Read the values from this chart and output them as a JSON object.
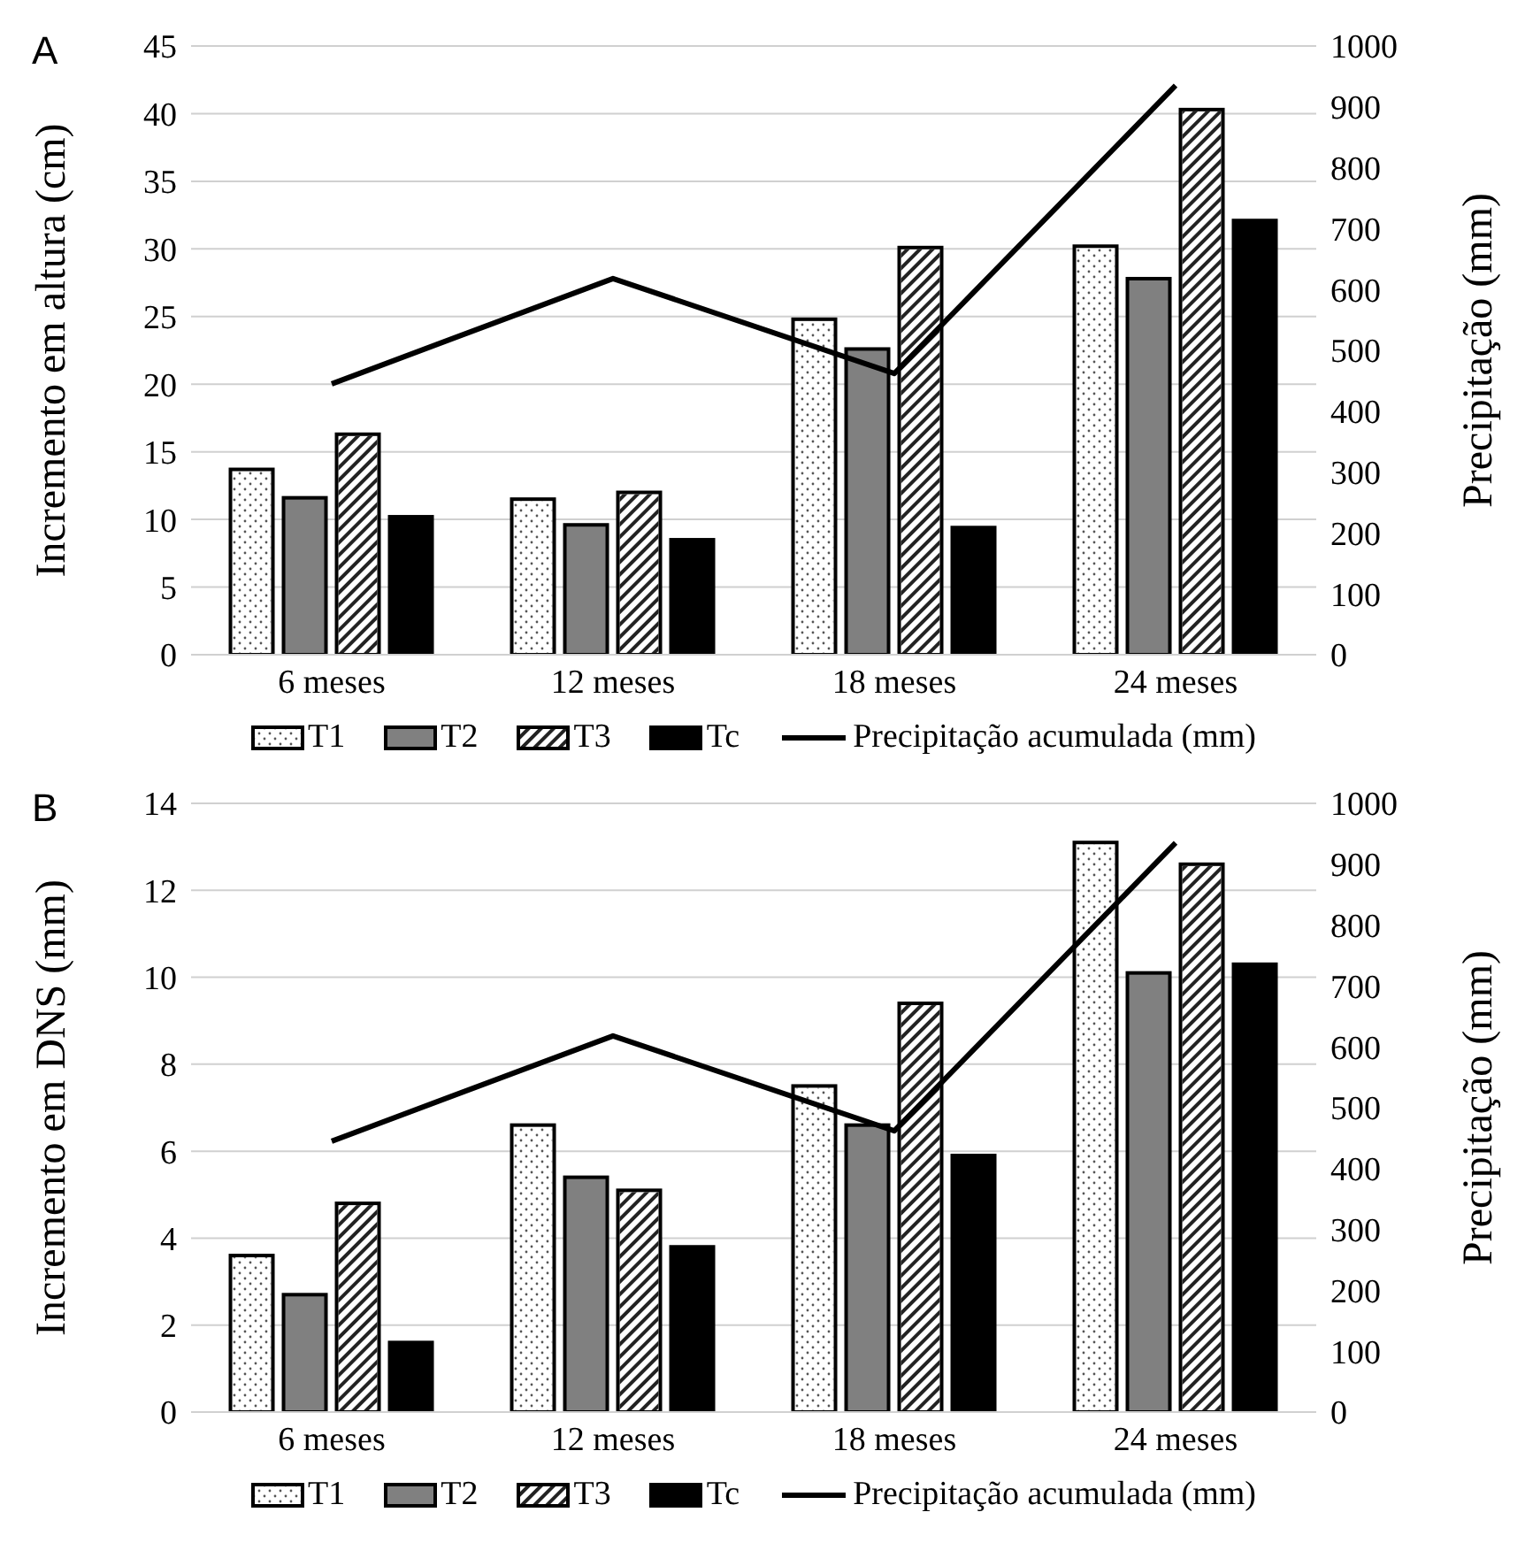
{
  "chart_data": [
    {
      "type": "bar",
      "title": "A",
      "categories": [
        "6 meses",
        "12 meses",
        "18 meses",
        "24 meses"
      ],
      "ylabel": "Incremento em altura (cm)",
      "y2label": "Precipitação (mm)",
      "ylim": [
        0,
        45
      ],
      "yticks": [
        0,
        5,
        10,
        15,
        20,
        25,
        30,
        35,
        40,
        45
      ],
      "y2lim": [
        0,
        1000
      ],
      "y2ticks": [
        0,
        100,
        200,
        300,
        400,
        500,
        600,
        700,
        800,
        900,
        1000
      ],
      "grid": "y",
      "legend": "bottom",
      "marker": "none",
      "series": [
        {
          "name": "T1",
          "color": "#ffffff",
          "values": [
            13.7,
            11.5,
            24.8,
            30.2
          ]
        },
        {
          "name": "T2",
          "color": "#808080",
          "values": [
            11.6,
            9.6,
            22.6,
            27.8
          ]
        },
        {
          "name": "T3",
          "color": "#ffffff",
          "values": [
            16.3,
            12.0,
            30.1,
            40.3
          ]
        },
        {
          "name": "Tc",
          "color": "#000000",
          "values": [
            10.2,
            8.5,
            9.4,
            32.1
          ]
        },
        {
          "name": "Precipitação acumulada (mm)",
          "type": "line",
          "axis": "y2",
          "color": "#000000",
          "values": [
            445,
            618,
            462,
            935
          ]
        }
      ]
    },
    {
      "type": "bar",
      "title": "B",
      "categories": [
        "6 meses",
        "12 meses",
        "18 meses",
        "24 meses"
      ],
      "ylabel": "Incremento em DNS (mm)",
      "y2label": "Precipitação (mm)",
      "ylim": [
        0,
        14
      ],
      "yticks": [
        0,
        2,
        4,
        6,
        8,
        10,
        12,
        14
      ],
      "y2lim": [
        0,
        1000
      ],
      "y2ticks": [
        0,
        100,
        200,
        300,
        400,
        500,
        600,
        700,
        800,
        900,
        1000
      ],
      "grid": "y",
      "legend": "bottom",
      "marker": "none",
      "series": [
        {
          "name": "T1",
          "color": "#ffffff",
          "values": [
            3.6,
            6.6,
            7.5,
            13.1
          ]
        },
        {
          "name": "T2",
          "color": "#808080",
          "values": [
            2.7,
            5.4,
            6.6,
            10.1
          ]
        },
        {
          "name": "T3",
          "color": "#ffffff",
          "values": [
            4.8,
            5.1,
            9.4,
            12.6
          ]
        },
        {
          "name": "Tc",
          "color": "#000000",
          "values": [
            1.6,
            3.8,
            5.9,
            10.3
          ]
        },
        {
          "name": "Precipitação acumulada (mm)",
          "type": "line",
          "axis": "y2",
          "color": "#000000",
          "values": [
            445,
            618,
            462,
            935
          ]
        }
      ]
    }
  ]
}
